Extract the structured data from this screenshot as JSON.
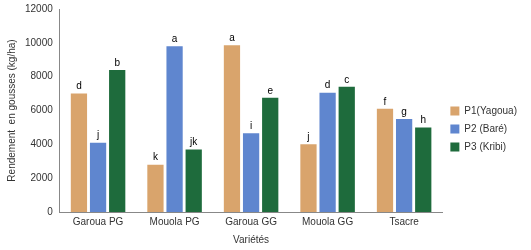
{
  "chart_data": {
    "type": "bar",
    "x_label": "Variétés",
    "y_label": "Rendement  en gousses (kg/ha)",
    "categories": [
      "Garoua PG",
      "Mouola PG",
      "Garoua GG",
      "Mouola GG",
      "Tsacre"
    ],
    "series": [
      {
        "name": "P1(Yagoua)",
        "color": "#d9a46c",
        "values": [
          7000,
          2800,
          9850,
          4000,
          6100
        ],
        "annotations": [
          "d",
          "k",
          "a",
          "j",
          "f"
        ]
      },
      {
        "name": "P2 (Baré)",
        "color": "#5f86cf",
        "values": [
          4100,
          9800,
          4650,
          7050,
          5500
        ],
        "annotations": [
          "j",
          "a",
          "i",
          "d",
          "g"
        ]
      },
      {
        "name": "P3 (Kribi)",
        "color": "#1e6b3c",
        "values": [
          8400,
          3700,
          6750,
          7400,
          5000
        ],
        "annotations": [
          "b",
          "jk",
          "e",
          "c",
          "h"
        ]
      }
    ],
    "ylim": [
      0,
      12000
    ],
    "yticks": [
      0,
      2000,
      4000,
      6000,
      8000,
      10000,
      12000
    ],
    "grid": false,
    "legend": "right"
  }
}
